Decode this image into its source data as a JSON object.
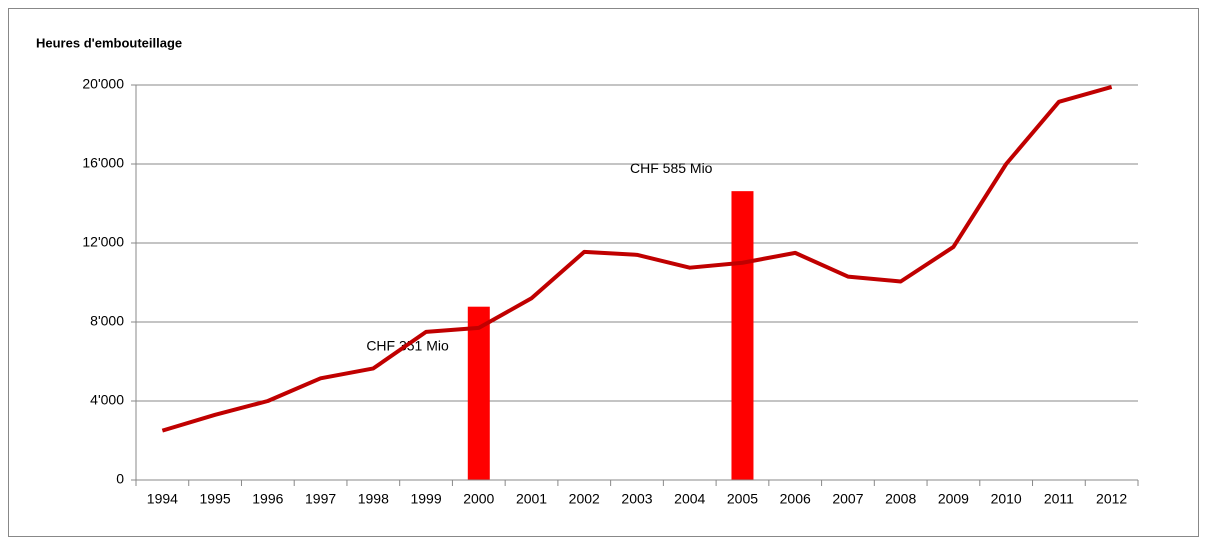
{
  "chart_data": {
    "type": "line",
    "title": "Heures d'embouteillage",
    "categories": [
      "1994",
      "1995",
      "1996",
      "1997",
      "1998",
      "1999",
      "2000",
      "2001",
      "2002",
      "2003",
      "2004",
      "2005",
      "2006",
      "2007",
      "2008",
      "2009",
      "2010",
      "2011",
      "2012"
    ],
    "series": [
      {
        "type": "line",
        "color": "#c00000",
        "values": [
          2500,
          3300,
          4000,
          5150,
          5650,
          7500,
          7700,
          9200,
          11550,
          11400,
          10750,
          11000,
          11500,
          10300,
          10050,
          11800,
          16000,
          19150,
          19900
        ]
      },
      {
        "type": "bar",
        "axis": "y2",
        "color": "#ff0000",
        "values": [
          null,
          null,
          null,
          null,
          null,
          null,
          351,
          null,
          null,
          null,
          null,
          585,
          null,
          null,
          null,
          null,
          null,
          null,
          null
        ],
        "value_labels": [
          null,
          null,
          null,
          null,
          null,
          null,
          "CHF 351 Mio",
          null,
          null,
          null,
          null,
          "CHF 585 Mio",
          null,
          null,
          null,
          null,
          null,
          null,
          null
        ]
      }
    ],
    "ylim": [
      0,
      20000
    ],
    "yticks": [
      0,
      {
        "value": 4000,
        "label": "4'000"
      },
      {
        "value": 8000,
        "label": "8'000"
      },
      {
        "value": 12000,
        "label": "12'000"
      },
      {
        "value": 16000,
        "label": "16'000"
      },
      {
        "value": 20000,
        "label": "20'000"
      }
    ],
    "y2lim": [
      0,
      800
    ],
    "grid": true
  }
}
